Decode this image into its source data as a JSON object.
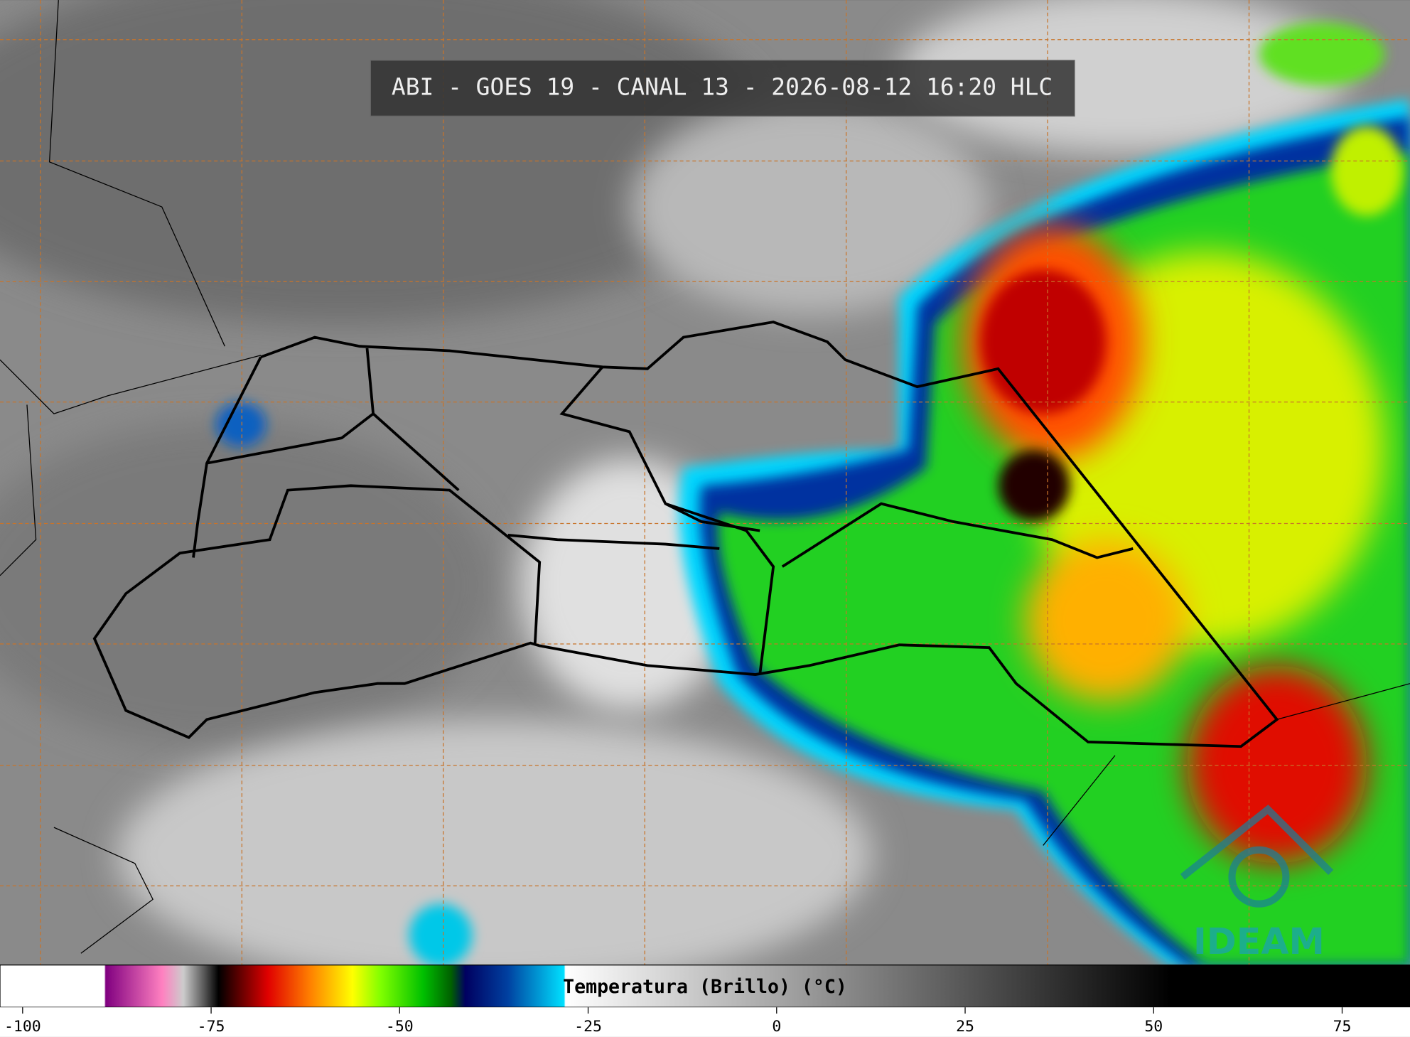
{
  "header": {
    "title": "ABI - GOES 19 - CANAL 13 - 2026-08-12 16:20 HLC"
  },
  "colorbar": {
    "label": "Temperatura (Brillo) (°C)",
    "lim": [
      -103,
      84
    ],
    "ticks": [
      -100,
      -75,
      -50,
      -25,
      0,
      25,
      50,
      75
    ]
  },
  "logo": {
    "text": "IDEAM"
  }
}
